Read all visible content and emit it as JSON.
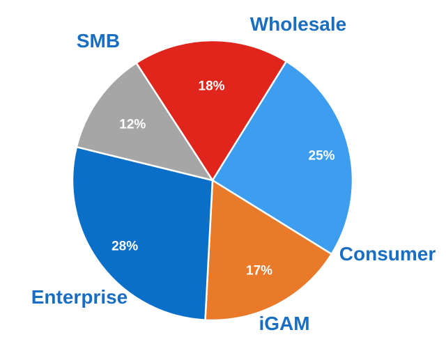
{
  "chart_data": {
    "type": "pie",
    "categories": [
      "Wholesale",
      "Consumer",
      "iGAM",
      "Enterprise",
      "SMB"
    ],
    "values": [
      18,
      25,
      17,
      28,
      12
    ],
    "value_labels": [
      "18%",
      "25%",
      "17%",
      "28%",
      "12%"
    ],
    "colors": [
      "#e0261c",
      "#3d9ef0",
      "#e87a2a",
      "#0a6fc9",
      "#a6a6a6"
    ],
    "label_color": "#1a6ec2",
    "value_label_color": "#ffffff",
    "slice_border_color": "#ffffff",
    "title": "",
    "legend": "none"
  }
}
